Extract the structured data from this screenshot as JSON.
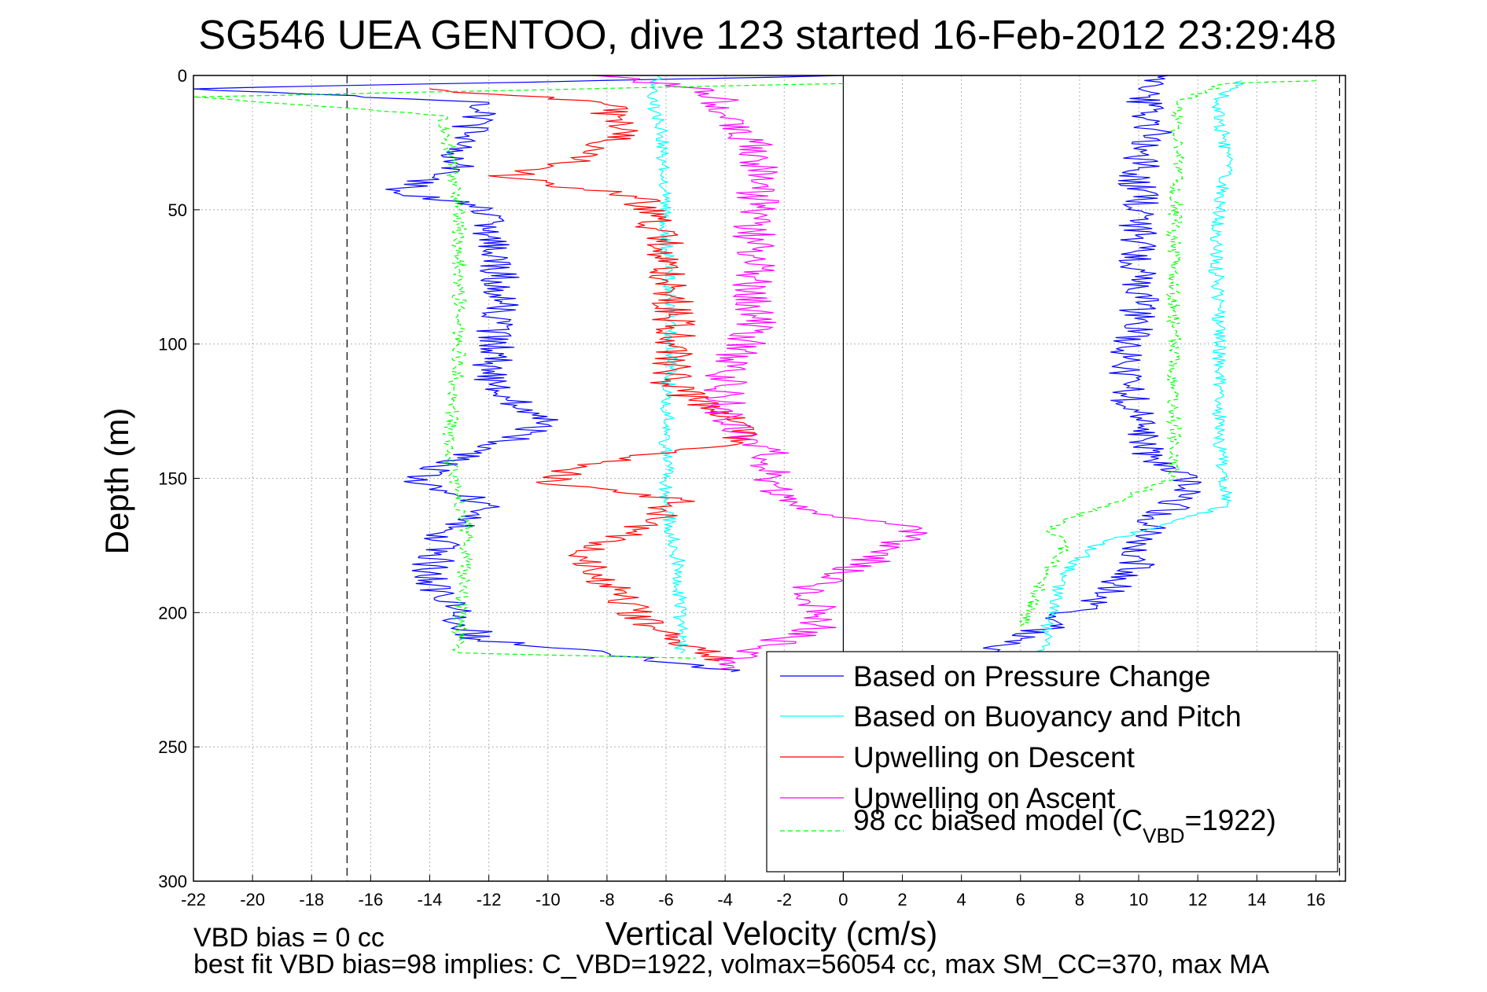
{
  "chart_data": {
    "type": "line",
    "title": "SG546 UEA GENTOO, dive 123 started 16-Feb-2012 23:29:48",
    "xlabel": "Vertical Velocity (cm/s)",
    "ylabel": "Depth (m)",
    "xlim": [
      -22,
      17
    ],
    "ylim": [
      300,
      0
    ],
    "y_reversed": true,
    "xticks": [
      -22,
      -20,
      -18,
      -16,
      -14,
      -12,
      -10,
      -8,
      -6,
      -4,
      -2,
      0,
      2,
      4,
      6,
      8,
      10,
      12,
      14,
      16
    ],
    "yticks": [
      0,
      50,
      100,
      150,
      200,
      250,
      300
    ],
    "grid": true,
    "legend_position": "bottom-right",
    "colors": {
      "pressure": "#0000ff",
      "buoyancy": "#00ffff",
      "up_descent": "#ff0000",
      "up_ascent": "#ff00ff",
      "model": "#00ff00"
    },
    "reference_lines": {
      "solid_x": 0,
      "dashed_x": [
        -16.8,
        16.8
      ]
    },
    "series": [
      {
        "name": "Based on Pressure Change",
        "key": "pressure",
        "descent": [
          [
            0,
            0
          ],
          [
            -22,
            5
          ],
          [
            -12,
            10
          ],
          [
            -13,
            25
          ],
          [
            -13,
            35
          ],
          [
            -15,
            43
          ],
          [
            -12,
            50
          ],
          [
            -12,
            60
          ],
          [
            -11.5,
            80
          ],
          [
            -11.8,
            100
          ],
          [
            -12,
            115
          ],
          [
            -10,
            130
          ],
          [
            -12.5,
            140
          ],
          [
            -14.5,
            150
          ],
          [
            -12,
            160
          ],
          [
            -13.5,
            170
          ],
          [
            -14,
            185
          ],
          [
            -13.2,
            200
          ],
          [
            -12.3,
            210
          ],
          [
            -8,
            215
          ],
          [
            -3.8,
            222
          ]
        ],
        "ascent": [
          [
            4,
            220
          ],
          [
            5.5,
            212
          ],
          [
            7,
            205
          ],
          [
            8.5,
            195
          ],
          [
            9.8,
            185
          ],
          [
            10,
            175
          ],
          [
            10.5,
            165
          ],
          [
            11.5,
            158
          ],
          [
            12,
            152
          ],
          [
            10.5,
            145
          ],
          [
            10,
            130
          ],
          [
            9.5,
            115
          ],
          [
            9.8,
            100
          ],
          [
            10,
            85
          ],
          [
            10,
            60
          ],
          [
            10,
            35
          ],
          [
            10.5,
            20
          ],
          [
            10,
            5
          ],
          [
            11,
            0
          ]
        ]
      },
      {
        "name": "Based on Buoyancy and Pitch",
        "key": "buoyancy",
        "descent": [
          [
            -6.3,
            0
          ],
          [
            -6.5,
            10
          ],
          [
            -6.1,
            20
          ],
          [
            -6,
            60
          ],
          [
            -5.8,
            100
          ],
          [
            -6,
            130
          ],
          [
            -6,
            160
          ],
          [
            -5.6,
            180
          ],
          [
            -5.5,
            215
          ]
        ],
        "ascent": [
          [
            6.8,
            215
          ],
          [
            7,
            200
          ],
          [
            7.5,
            185
          ],
          [
            8.5,
            175
          ],
          [
            13,
            160
          ],
          [
            12.8,
            150
          ],
          [
            12.7,
            100
          ],
          [
            12.6,
            60
          ],
          [
            13,
            30
          ],
          [
            12.6,
            10
          ],
          [
            13.5,
            2
          ]
        ]
      },
      {
        "name": "Upwelling on Descent",
        "key": "up_descent",
        "descent": [
          [
            -14,
            5
          ],
          [
            -8.2,
            10
          ],
          [
            -7.5,
            20
          ],
          [
            -8.5,
            30
          ],
          [
            -11.5,
            38
          ],
          [
            -7,
            45
          ],
          [
            -6.1,
            60
          ],
          [
            -5.8,
            80
          ],
          [
            -5.7,
            100
          ],
          [
            -5.9,
            115
          ],
          [
            -4.5,
            125
          ],
          [
            -3,
            133
          ],
          [
            -4,
            138
          ],
          [
            -9,
            145
          ],
          [
            -10.2,
            152
          ],
          [
            -5.5,
            158
          ],
          [
            -6.5,
            165
          ],
          [
            -8.8,
            180
          ],
          [
            -7.5,
            195
          ],
          [
            -6.5,
            205
          ],
          [
            -4.2,
            218
          ]
        ]
      },
      {
        "name": "Upwelling on Ascent",
        "key": "up_ascent",
        "ascent": [
          [
            -4.2,
            221
          ],
          [
            -3.8,
            218
          ],
          [
            -2.5,
            212
          ],
          [
            -0.8,
            205
          ],
          [
            -1,
            190
          ],
          [
            0,
            185
          ],
          [
            1.5,
            178
          ],
          [
            2.5,
            168
          ],
          [
            0.5,
            165
          ],
          [
            -1.8,
            160
          ],
          [
            -2.5,
            150
          ],
          [
            -2.5,
            140
          ],
          [
            -4,
            128
          ],
          [
            -4,
            110
          ],
          [
            -3,
            95
          ],
          [
            -3,
            75
          ],
          [
            -3,
            55
          ],
          [
            -2.8,
            30
          ],
          [
            -4,
            15
          ],
          [
            -4.5,
            5
          ],
          [
            -8.5,
            0
          ]
        ]
      },
      {
        "name": "98 cc biased model (C_VBD=1922)",
        "key": "model",
        "descent": [
          [
            0,
            3
          ],
          [
            -22,
            8
          ],
          [
            -13.5,
            15
          ],
          [
            -13.3,
            30
          ],
          [
            -13,
            50
          ],
          [
            -13,
            100
          ],
          [
            -13.4,
            140
          ],
          [
            -12.7,
            170
          ],
          [
            -13,
            200
          ],
          [
            -13,
            215
          ],
          [
            -5,
            217
          ]
        ],
        "ascent": [
          [
            6,
            205
          ],
          [
            6.5,
            195
          ],
          [
            6.8,
            185
          ],
          [
            7.5,
            175
          ],
          [
            7,
            168
          ],
          [
            11.2,
            150
          ],
          [
            11.2,
            100
          ],
          [
            11.2,
            60
          ],
          [
            11.3,
            30
          ],
          [
            11.3,
            10
          ],
          [
            13,
            3
          ],
          [
            16,
            2
          ]
        ]
      }
    ],
    "legend": [
      {
        "key": "pressure",
        "label": "Based on Pressure Change"
      },
      {
        "key": "buoyancy",
        "label": "Based on Buoyancy and Pitch"
      },
      {
        "key": "up_descent",
        "label": "Upwelling on Descent"
      },
      {
        "key": "up_ascent",
        "label": "Upwelling on Ascent"
      },
      {
        "key": "model",
        "label_main": "98 cc biased model (C",
        "label_sub": "VBD",
        "label_tail": "=1922)"
      }
    ]
  },
  "footer": {
    "line1": "VBD bias = 0 cc",
    "line2": "best fit VBD bias=98 implies: C_VBD=1922, volmax=56054 cc, max SM_CC=370, max MA"
  }
}
